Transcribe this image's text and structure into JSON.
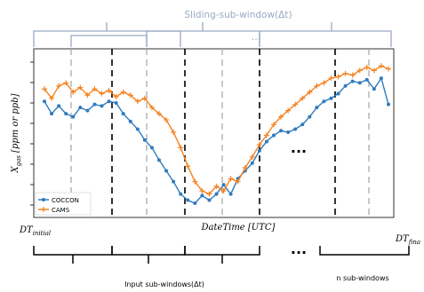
{
  "title": "Sliding-sub-window(Δt)",
  "ylabel_main": "X",
  "ylabel_sub": "gas",
  "ylabel_rest": " [ppm or ppb]",
  "xlabel": "DateTime [UTC]",
  "x_start_main": "DT",
  "x_start_sub": "initial",
  "x_end_main": "DT",
  "x_end_sub": "fina",
  "top_dots": "...",
  "mid_dots": "...",
  "bottom_dots": "...",
  "input_label": "Input sub-windows(Δt)",
  "n_label": "n sub-windows",
  "legend": [
    {
      "name": "COCCON",
      "color": "#2f7bbd"
    },
    {
      "name": "CAMS",
      "color": "#f58220"
    }
  ],
  "colors": {
    "coccon": "#2f7bbd",
    "cams": "#f58220",
    "bracket": "#9aa9c4",
    "title": "#9aa9c4",
    "axis": "#000000"
  },
  "chart_data": {
    "type": "line",
    "series": [
      {
        "name": "COCCON",
        "values": [
          0.7,
          0.62,
          0.67,
          0.62,
          0.6,
          0.66,
          0.64,
          0.68,
          0.67,
          0.7,
          0.69,
          0.62,
          0.57,
          0.52,
          0.45,
          0.4,
          0.32,
          0.25,
          0.18,
          0.1,
          0.06,
          0.04,
          0.09,
          0.06,
          0.1,
          0.16,
          0.1,
          0.2,
          0.25,
          0.3,
          0.38,
          0.44,
          0.48,
          0.51,
          0.5,
          0.52,
          0.55,
          0.6,
          0.66,
          0.7,
          0.72,
          0.75,
          0.8,
          0.83,
          0.82,
          0.84,
          0.78,
          0.85,
          0.68
        ]
      },
      {
        "name": "CAMS",
        "values": [
          0.78,
          0.72,
          0.8,
          0.82,
          0.76,
          0.79,
          0.74,
          0.78,
          0.75,
          0.77,
          0.73,
          0.76,
          0.74,
          0.7,
          0.72,
          0.66,
          0.62,
          0.58,
          0.5,
          0.4,
          0.28,
          0.18,
          0.12,
          0.1,
          0.15,
          0.12,
          0.2,
          0.18,
          0.27,
          0.34,
          0.42,
          0.48,
          0.55,
          0.6,
          0.64,
          0.68,
          0.72,
          0.76,
          0.8,
          0.82,
          0.85,
          0.86,
          0.88,
          0.87,
          0.9,
          0.92,
          0.9,
          0.93,
          0.91
        ]
      }
    ],
    "xlabel": "DateTime [UTC]",
    "ylabel": "X gas [ppm or ppb]"
  }
}
